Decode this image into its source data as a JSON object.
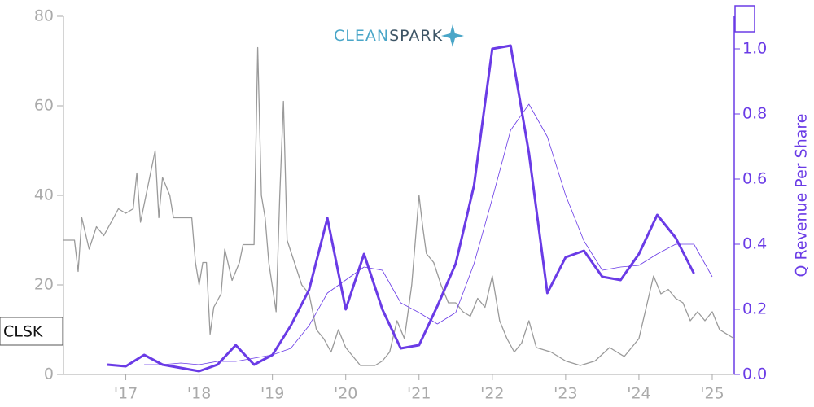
{
  "chart_data": {
    "type": "line",
    "ticker": "CLSK",
    "logo": [
      "CLEAN",
      "SPARK"
    ],
    "y2label": "Q Revenue Per Share",
    "xlim": [
      2016.15,
      2025.3
    ],
    "xticks": [
      {
        "value": 2017,
        "label": "'17"
      },
      {
        "value": 2018,
        "label": "'18"
      },
      {
        "value": 2019,
        "label": "'19"
      },
      {
        "value": 2020,
        "label": "'20"
      },
      {
        "value": 2021,
        "label": "'21"
      },
      {
        "value": 2022,
        "label": "'22"
      },
      {
        "value": 2023,
        "label": "'23"
      },
      {
        "value": 2024,
        "label": "'24"
      },
      {
        "value": 2025,
        "label": "'25"
      }
    ],
    "ylim": [
      0,
      80
    ],
    "yticks": [
      0,
      20,
      40,
      60,
      80
    ],
    "y2lim": [
      0,
      1.1
    ],
    "y2ticks": [
      {
        "value": 0,
        "label": "0.0"
      },
      0.2,
      0.4,
      0.6,
      0.8,
      {
        "value": 1,
        "label": "1.0"
      }
    ],
    "series": [
      {
        "color": "#9a9a9a",
        "line_width": 1.3,
        "axis": "y",
        "x": [
          2016.15,
          2016.3,
          2016.35,
          2016.4,
          2016.5,
          2016.6,
          2016.7,
          2016.8,
          2016.9,
          2017.0,
          2017.1,
          2017.15,
          2017.2,
          2017.3,
          2017.4,
          2017.45,
          2017.5,
          2017.6,
          2017.65,
          2017.9,
          2017.95,
          2018.0,
          2018.05,
          2018.1,
          2018.15,
          2018.2,
          2018.3,
          2018.35,
          2018.45,
          2018.55,
          2018.6,
          2018.75,
          2018.8,
          2018.85,
          2018.9,
          2018.95,
          2019.05,
          2019.1,
          2019.15,
          2019.2,
          2019.3,
          2019.4,
          2019.5,
          2019.6,
          2019.7,
          2019.8,
          2019.9,
          2020.0,
          2020.1,
          2020.2,
          2020.3,
          2020.4,
          2020.5,
          2020.6,
          2020.7,
          2020.8,
          2020.9,
          2021.0,
          2021.05,
          2021.1,
          2021.2,
          2021.3,
          2021.4,
          2021.5,
          2021.6,
          2021.7,
          2021.8,
          2021.9,
          2022.0,
          2022.1,
          2022.2,
          2022.3,
          2022.4,
          2022.5,
          2022.6,
          2022.8,
          2023.0,
          2023.2,
          2023.4,
          2023.6,
          2023.8,
          2024.0,
          2024.1,
          2024.2,
          2024.3,
          2024.4,
          2024.5,
          2024.6,
          2024.7,
          2024.8,
          2024.9,
          2025.0,
          2025.1,
          2025.2,
          2025.3
        ],
        "values": [
          30,
          30,
          23,
          35,
          28,
          33,
          31,
          34,
          37,
          36,
          37,
          45,
          34,
          42,
          50,
          35,
          44,
          40,
          35,
          35,
          25,
          20,
          25,
          25,
          9,
          15,
          18,
          28,
          21,
          25,
          29,
          29,
          73,
          40,
          35,
          25,
          14,
          40,
          61,
          30,
          25,
          20,
          18,
          10,
          8,
          5,
          10,
          6,
          4,
          2,
          2,
          2,
          3,
          5,
          12,
          8,
          20,
          40,
          33,
          27,
          25,
          20,
          16,
          16,
          14,
          13,
          17,
          15,
          22,
          12,
          8,
          5,
          7,
          12,
          6,
          5,
          3,
          2,
          3,
          6,
          4,
          8,
          15,
          22,
          18,
          19,
          17,
          16,
          12,
          14,
          12,
          14,
          10,
          9,
          8
        ]
      },
      {
        "color": "#6a3be6",
        "line_width": 3,
        "axis": "y2",
        "x": [
          2016.75,
          2017.0,
          2017.25,
          2017.5,
          2017.75,
          2018.0,
          2018.25,
          2018.5,
          2018.75,
          2019.0,
          2019.25,
          2019.5,
          2019.75,
          2020.0,
          2020.25,
          2020.5,
          2020.75,
          2021.0,
          2021.25,
          2021.5,
          2021.75,
          2022.0,
          2022.25,
          2022.5,
          2022.75,
          2023.0,
          2023.25,
          2023.5,
          2023.75,
          2024.0,
          2024.25,
          2024.5,
          2024.75
        ],
        "values": [
          0.03,
          0.025,
          0.06,
          0.03,
          0.02,
          0.01,
          0.03,
          0.09,
          0.03,
          0.06,
          0.15,
          0.26,
          0.48,
          0.2,
          0.37,
          0.2,
          0.08,
          0.09,
          0.21,
          0.34,
          0.58,
          1.0,
          1.01,
          0.68,
          0.25,
          0.36,
          0.38,
          0.3,
          0.29,
          0.37,
          0.49,
          0.42,
          0.31
        ]
      },
      {
        "color": "#6a3be6",
        "line_width": 0.8,
        "axis": "y2",
        "x": [
          2017.25,
          2017.5,
          2017.75,
          2018.0,
          2018.25,
          2018.5,
          2018.75,
          2019.0,
          2019.25,
          2019.5,
          2019.75,
          2020.0,
          2020.25,
          2020.5,
          2020.75,
          2021.0,
          2021.25,
          2021.5,
          2021.75,
          2022.0,
          2022.25,
          2022.5,
          2022.75,
          2023.0,
          2023.25,
          2023.5,
          2023.75,
          2024.0,
          2024.25,
          2024.5,
          2024.75,
          2025.0
        ],
        "values": [
          0.03,
          0.03,
          0.035,
          0.03,
          0.04,
          0.04,
          0.05,
          0.06,
          0.08,
          0.15,
          0.25,
          0.29,
          0.33,
          0.32,
          0.22,
          0.19,
          0.155,
          0.19,
          0.34,
          0.54,
          0.75,
          0.83,
          0.73,
          0.55,
          0.41,
          0.32,
          0.33,
          0.335,
          0.37,
          0.4,
          0.4,
          0.3
        ]
      }
    ]
  }
}
